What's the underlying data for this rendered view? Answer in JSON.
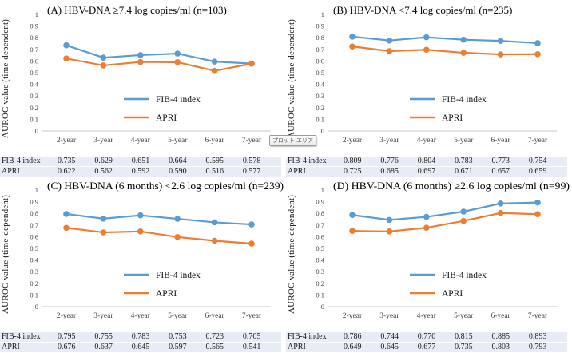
{
  "tooltip": {
    "label": "プロット エリア"
  },
  "colors": {
    "fib4_line": "#5B9BD5",
    "apri_line": "#ED7D31",
    "table_stripe": "#E8ECF6",
    "axis_line": "#C9C9C9"
  },
  "chart_data": [
    {
      "type": "line",
      "panel": "A",
      "title": "(A) HBV-DNA ≥7.4 log copies/ml (n=103)",
      "categories": [
        "2-year",
        "3-year",
        "4-year",
        "5-year",
        "6-year",
        "7-year"
      ],
      "series": [
        {
          "name": "FIB-4 index",
          "color": "#5B9BD5",
          "values": [
            0.735,
            0.629,
            0.651,
            0.664,
            0.595,
            0.578
          ]
        },
        {
          "name": "APRI",
          "color": "#ED7D31",
          "values": [
            0.622,
            0.562,
            0.592,
            0.59,
            0.516,
            0.577
          ]
        }
      ],
      "xlabel": "",
      "ylabel": "AUROC value (time-dependent)",
      "ylim": [
        0,
        1
      ],
      "ytick_step": 0.1,
      "grid": false,
      "legend_position": "center-right",
      "table_rows": [
        {
          "label": "FIB-4 index",
          "values": [
            "0.735",
            "0.629",
            "0.651",
            "0.664",
            "0.595",
            "0.578"
          ]
        },
        {
          "label": "APRI",
          "values": [
            "0.622",
            "0.562",
            "0.592",
            "0.590",
            "0.516",
            "0.577"
          ]
        }
      ]
    },
    {
      "type": "line",
      "panel": "B",
      "title": "(B) HBV-DNA <7.4 log copies/ml (n=235)",
      "categories": [
        "2-year",
        "3-year",
        "4-year",
        "5-year",
        "6-year",
        "7-year"
      ],
      "series": [
        {
          "name": "FIB-4 index",
          "color": "#5B9BD5",
          "values": [
            0.809,
            0.776,
            0.804,
            0.783,
            0.773,
            0.754
          ]
        },
        {
          "name": "APRI",
          "color": "#ED7D31",
          "values": [
            0.725,
            0.685,
            0.697,
            0.671,
            0.657,
            0.659
          ]
        }
      ],
      "xlabel": "",
      "ylabel": "AUROC value (time-dependent)",
      "ylim": [
        0,
        1
      ],
      "ytick_step": 0.1,
      "grid": false,
      "legend_position": "center-right",
      "table_rows": [
        {
          "label": "FIB-4 index",
          "values": [
            "0.809",
            "0.776",
            "0.804",
            "0.783",
            "0.773",
            "0.754"
          ]
        },
        {
          "label": "APRI",
          "values": [
            "0.725",
            "0.685",
            "0.697",
            "0.671",
            "0.657",
            "0.659"
          ]
        }
      ]
    },
    {
      "type": "line",
      "panel": "C",
      "title": "(C) HBV-DNA (6 months) <2.6 log copies/ml (n=239)",
      "categories": [
        "2-year",
        "3-year",
        "4-year",
        "5-year",
        "6-year",
        "7-year"
      ],
      "series": [
        {
          "name": "FIB-4 index",
          "color": "#5B9BD5",
          "values": [
            0.795,
            0.755,
            0.783,
            0.753,
            0.723,
            0.705
          ]
        },
        {
          "name": "APRI",
          "color": "#ED7D31",
          "values": [
            0.676,
            0.637,
            0.645,
            0.597,
            0.565,
            0.541
          ]
        }
      ],
      "xlabel": "",
      "ylabel": "AUROC value (time-dependent)",
      "ylim": [
        0,
        1
      ],
      "ytick_step": 0.1,
      "grid": false,
      "legend_position": "center-right",
      "table_rows": [
        {
          "label": "FIB-4 index",
          "values": [
            "0.795",
            "0.755",
            "0.783",
            "0.753",
            "0.723",
            "0.705"
          ]
        },
        {
          "label": "APRI",
          "values": [
            "0.676",
            "0.637",
            "0.645",
            "0.597",
            "0.565",
            "0.541"
          ]
        }
      ]
    },
    {
      "type": "line",
      "panel": "D",
      "title": "(D) HBV-DNA (6 months) ≥2.6 log copies/ml (n=99)",
      "categories": [
        "2-year",
        "3-year",
        "4-year",
        "5-year",
        "6-year",
        "7-year"
      ],
      "series": [
        {
          "name": "FIB-4 index",
          "color": "#5B9BD5",
          "values": [
            0.786,
            0.744,
            0.77,
            0.815,
            0.885,
            0.893
          ]
        },
        {
          "name": "APRI",
          "color": "#ED7D31",
          "values": [
            0.649,
            0.645,
            0.677,
            0.735,
            0.803,
            0.793
          ]
        }
      ],
      "xlabel": "",
      "ylabel": "AUROC value (time-dependent)",
      "ylim": [
        0,
        1
      ],
      "ytick_step": 0.1,
      "grid": false,
      "legend_position": "center-right",
      "table_rows": [
        {
          "label": "FIB-4 index",
          "values": [
            "0.786",
            "0.744",
            "0.770",
            "0.815",
            "0.885",
            "0.893"
          ]
        },
        {
          "label": "APRI",
          "values": [
            "0.649",
            "0.645",
            "0.677",
            "0.735",
            "0.803",
            "0.793"
          ]
        }
      ]
    }
  ]
}
